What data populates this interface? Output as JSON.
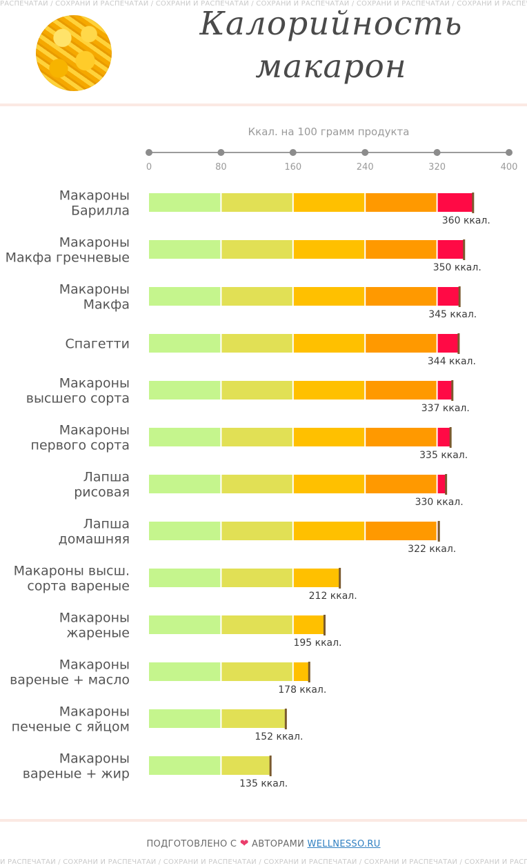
{
  "watermark": "РАСПЕЧАТАЙ / СОХРАНИ И РАСПЕЧАТАЙ / СОХРАНИ И РАСПЕЧАТАЙ / СОХРАНИ И РАСПЕЧАТАЙ / СОХРАНИ И РАСПЕЧАТАЙ / СОХРАНИ И РАСПЕЧАТАЙ / СОХРАНИ И РАСПЕЧАТАЙ / СОХРАНИ И РАСПЕЧАТАЙ",
  "watermark_bottom": "И РАСПЕЧАТАЙ / СОХРАНИ И РАСПЕЧАТАЙ / СОХРАНИ И РАСПЕЧАТАЙ / СОХРАНИ И РАСПЕЧАТАЙ / СОХРАНИ И РАСПЕЧАТАЙ / СОХРАНИ И РАСПЕЧАТАЙ / СОХРАНИ И РАСПЕЧАТАЙ / СОХРАНИ И",
  "header": {
    "title_line1": "Калорийность",
    "title_line2": "макарон"
  },
  "footer": {
    "prefix": "ПОДГОТОВЛЕНО С",
    "heart": "❤",
    "middle": "АВТОРАМИ",
    "link": "WELLNESSO.RU"
  },
  "colors": {
    "segments": [
      "#c5f58d",
      "#e1e055",
      "#ffc000",
      "#ff9900",
      "#ff0a45"
    ],
    "marker": "#7a5a2e"
  },
  "chart_data": {
    "type": "bar",
    "title": "",
    "xlabel": "Ккал. на 100 грамм продукта",
    "xlim": [
      0,
      400
    ],
    "ticks": [
      0,
      80,
      160,
      240,
      320,
      400
    ],
    "value_suffix": " ккал.",
    "categories": [
      [
        "Макароны",
        "Барилла"
      ],
      [
        "Макароны",
        "Макфа гречневые"
      ],
      [
        "Макароны",
        "Макфа"
      ],
      [
        "Спагетти"
      ],
      [
        "Макароны",
        "высшего сорта"
      ],
      [
        "Макароны",
        "первого сорта"
      ],
      [
        "Лапша",
        "рисовая"
      ],
      [
        "Лапша",
        "домашняя"
      ],
      [
        "Макароны высш.",
        "сорта вареные"
      ],
      [
        "Макароны",
        "жареные"
      ],
      [
        "Макароны",
        "вареные + масло"
      ],
      [
        "Макароны",
        "печеные с яйцом"
      ],
      [
        "Макароны",
        "вареные + жир"
      ]
    ],
    "values": [
      360,
      350,
      345,
      344,
      337,
      335,
      330,
      322,
      212,
      195,
      178,
      152,
      135
    ]
  }
}
